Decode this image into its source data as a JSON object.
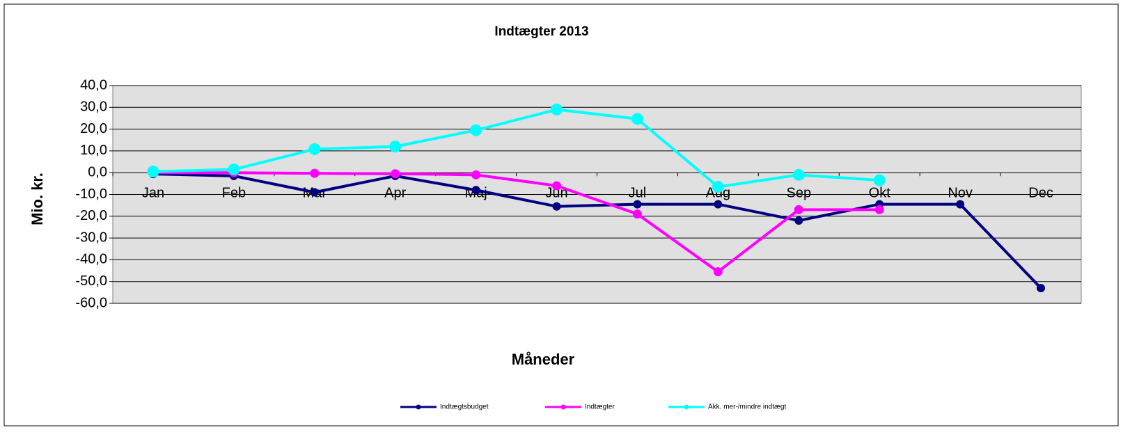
{
  "chart_data": {
    "type": "line",
    "title": "Indtægter 2013",
    "x_label": "Måneder",
    "y_label": "Mio. kr.",
    "categories": [
      "Jan",
      "Feb",
      "Mar",
      "Apr",
      "Maj",
      "Jun",
      "Jul",
      "Aug",
      "Sep",
      "Okt",
      "Nov",
      "Dec"
    ],
    "series": [
      {
        "name": "Indtægtsbudget",
        "color": "#000080",
        "values": [
          -0.6,
          -1.5,
          -9,
          -1.5,
          -8,
          -15.5,
          -14.5,
          -14.5,
          -22,
          -14.5,
          -14.5,
          -53
        ]
      },
      {
        "name": "Indtægter",
        "color": "#ff00ff",
        "values": [
          0,
          0,
          -0.3,
          -0.5,
          -1,
          -6,
          -19,
          -45.5,
          -17,
          -17,
          null,
          null
        ]
      },
      {
        "name": "Akk. mer-/mindre indtægt",
        "color": "#00ffff",
        "values": [
          0.5,
          1.5,
          10.8,
          12,
          19.5,
          29,
          24.7,
          -6.5,
          -1,
          -3.5,
          null,
          null
        ]
      }
    ],
    "ylim": [
      -60,
      40
    ],
    "yticks": [
      {
        "value": -60,
        "label": "-60,0"
      },
      {
        "value": -50,
        "label": "-50,0"
      },
      {
        "value": -40,
        "label": "-40,0"
      },
      {
        "value": -30,
        "label": "-30,0"
      },
      {
        "value": -20,
        "label": "-20,0"
      },
      {
        "value": -10,
        "label": "-10,0"
      },
      {
        "value": 0,
        "label": "0,0"
      },
      {
        "value": 10,
        "label": "10,0"
      },
      {
        "value": 20,
        "label": "20,0"
      },
      {
        "value": 30,
        "label": "30,0"
      },
      {
        "value": 40,
        "label": "40,0"
      }
    ],
    "grid": true,
    "legend": "bottom"
  }
}
